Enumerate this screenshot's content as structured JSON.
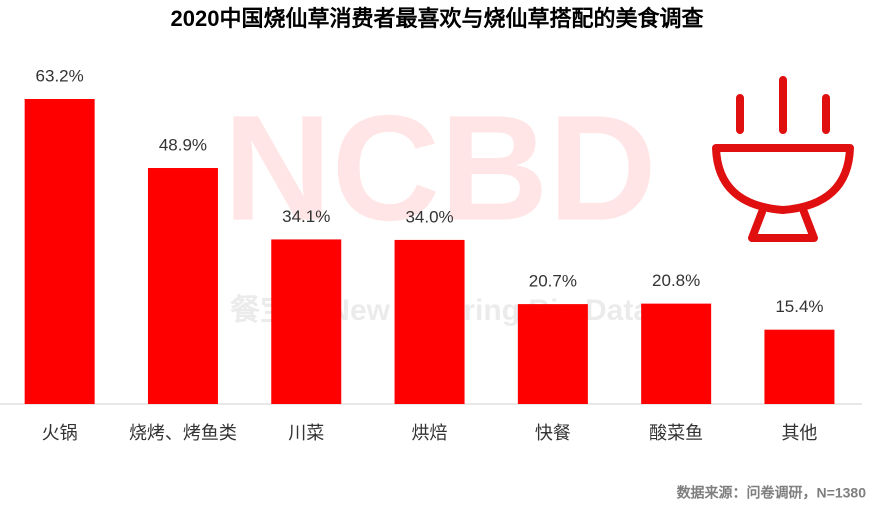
{
  "chart_data": {
    "type": "bar",
    "title": "2020中国烧仙草消费者最喜欢与烧仙草搭配的美食调查",
    "categories": [
      "火锅",
      "烧烤、烤鱼类",
      "川菜",
      "烘焙",
      "快餐",
      "酸菜鱼",
      "其他"
    ],
    "values": [
      63.2,
      48.9,
      34.1,
      34.0,
      20.7,
      20.8,
      15.4
    ],
    "value_labels": [
      "63.2%",
      "48.9%",
      "34.1%",
      "34.0%",
      "20.7%",
      "20.8%",
      "15.4%"
    ],
    "color": "#ff0000",
    "watermark": "NCBD",
    "watermark_subtitle": "餐宝典 New Catering Big Data",
    "source": "数据来源：问卷调研，N=1380"
  }
}
